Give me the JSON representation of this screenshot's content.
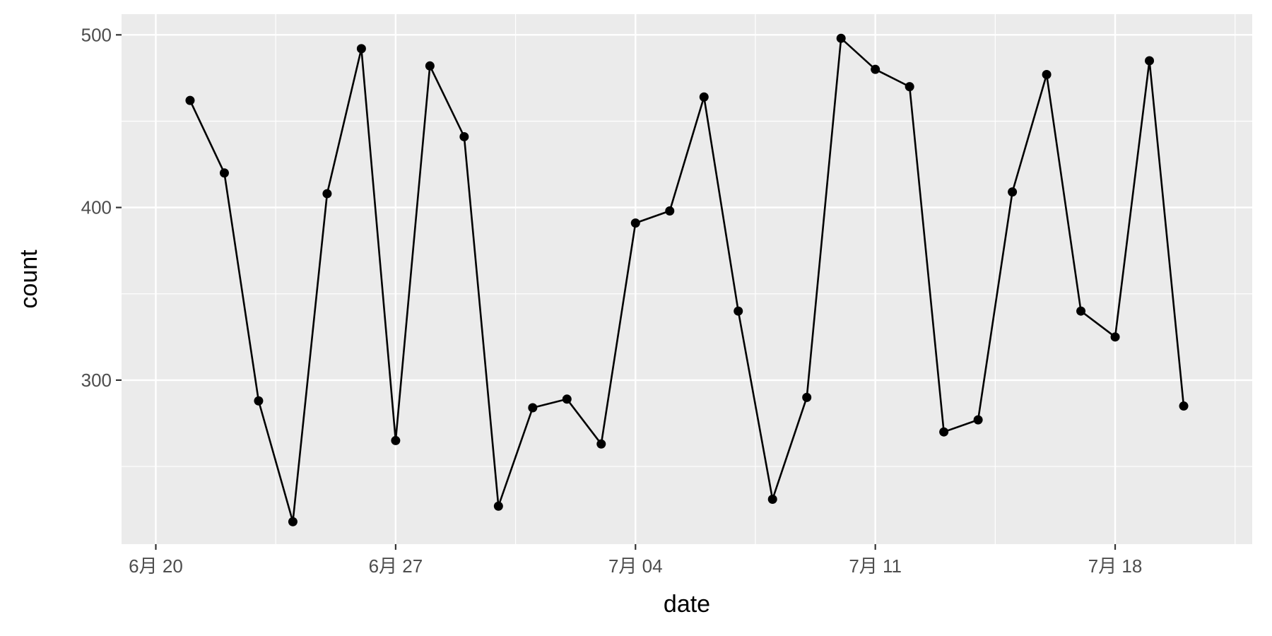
{
  "chart_data": {
    "type": "line",
    "xlabel": "date",
    "ylabel": "count",
    "x_tick_labels": [
      "6月 20",
      "6月 27",
      "7月 04",
      "7月 11",
      "7月 18"
    ],
    "x_tick_dates": [
      "2024-06-20",
      "2024-06-27",
      "2024-07-04",
      "2024-07-11",
      "2024-07-18"
    ],
    "y_tick_values": [
      300,
      400,
      500
    ],
    "xlim": [
      "2024-06-19",
      "2024-07-22"
    ],
    "ylim": [
      205,
      512
    ],
    "grid": true,
    "legend": "none",
    "colors": {
      "panel": "#ebebeb",
      "grid": "#ffffff",
      "line": "#000000",
      "point": "#000000",
      "tick": "#333333"
    },
    "series": [
      {
        "x": [
          "2024-06-21",
          "2024-06-22",
          "2024-06-23",
          "2024-06-24",
          "2024-06-25",
          "2024-06-26",
          "2024-06-27",
          "2024-06-28",
          "2024-06-29",
          "2024-06-30",
          "2024-07-01",
          "2024-07-02",
          "2024-07-03",
          "2024-07-04",
          "2024-07-05",
          "2024-07-06",
          "2024-07-07",
          "2024-07-08",
          "2024-07-09",
          "2024-07-10",
          "2024-07-11",
          "2024-07-12",
          "2024-07-13",
          "2024-07-14",
          "2024-07-15",
          "2024-07-16",
          "2024-07-17",
          "2024-07-18",
          "2024-07-19",
          "2024-07-20"
        ],
        "y": [
          462,
          420,
          288,
          218,
          408,
          492,
          265,
          482,
          441,
          227,
          284,
          289,
          263,
          391,
          398,
          464,
          340,
          231,
          290,
          498,
          480,
          470,
          270,
          277,
          409,
          477,
          340,
          325,
          485,
          285
        ]
      }
    ]
  }
}
